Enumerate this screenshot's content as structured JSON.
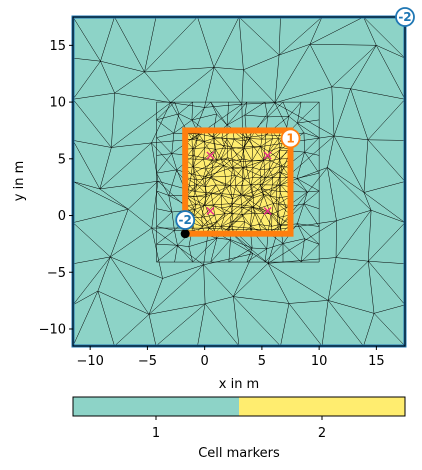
{
  "plot": {
    "xlabel": "x in m",
    "ylabel": "y in m",
    "xlim": [
      -11.5,
      17.5
    ],
    "ylim": [
      -11.5,
      17.5
    ],
    "x_ticks": [
      -10,
      -5,
      0,
      5,
      10,
      15
    ],
    "y_ticks": [
      -10,
      -5,
      0,
      5,
      10,
      15
    ],
    "x_tick_labels": [
      "−10",
      "−5",
      "0",
      "5",
      "10",
      "15"
    ],
    "y_tick_labels": [
      "−10",
      "−5",
      "0",
      "5",
      "10",
      "15"
    ]
  },
  "regions": [
    {
      "marker": "1",
      "color": "#8dd3c7",
      "x": [
        -11.5,
        17.5
      ],
      "y": [
        -11.5,
        17.5
      ]
    },
    {
      "marker": "2",
      "color": "#ffed6f",
      "x": [
        -1.7,
        7.5
      ],
      "y": [
        -1.6,
        7.5
      ]
    }
  ],
  "boundary": {
    "color": "#ff7f0e",
    "outer_color": "#1f77b4"
  },
  "boundary_labels": [
    {
      "text": "-2",
      "x": 17.5,
      "y": 17.5
    },
    {
      "text": "1",
      "x": 7.5,
      "y": 6.8
    },
    {
      "text": "-2",
      "x": -1.7,
      "y": -0.4
    }
  ],
  "markers": [
    {
      "x": 0.5,
      "y": 5.3
    },
    {
      "x": 5.5,
      "y": 5.3
    },
    {
      "x": 0.5,
      "y": 0.4
    },
    {
      "x": 5.5,
      "y": 0.4
    }
  ],
  "nodes": [
    {
      "x": -1.7,
      "y": -1.6
    }
  ],
  "colorbar": {
    "label": "Cell markers",
    "ticks": [
      "1",
      "2"
    ],
    "colors": [
      "#8dd3c7",
      "#ffed6f"
    ]
  }
}
